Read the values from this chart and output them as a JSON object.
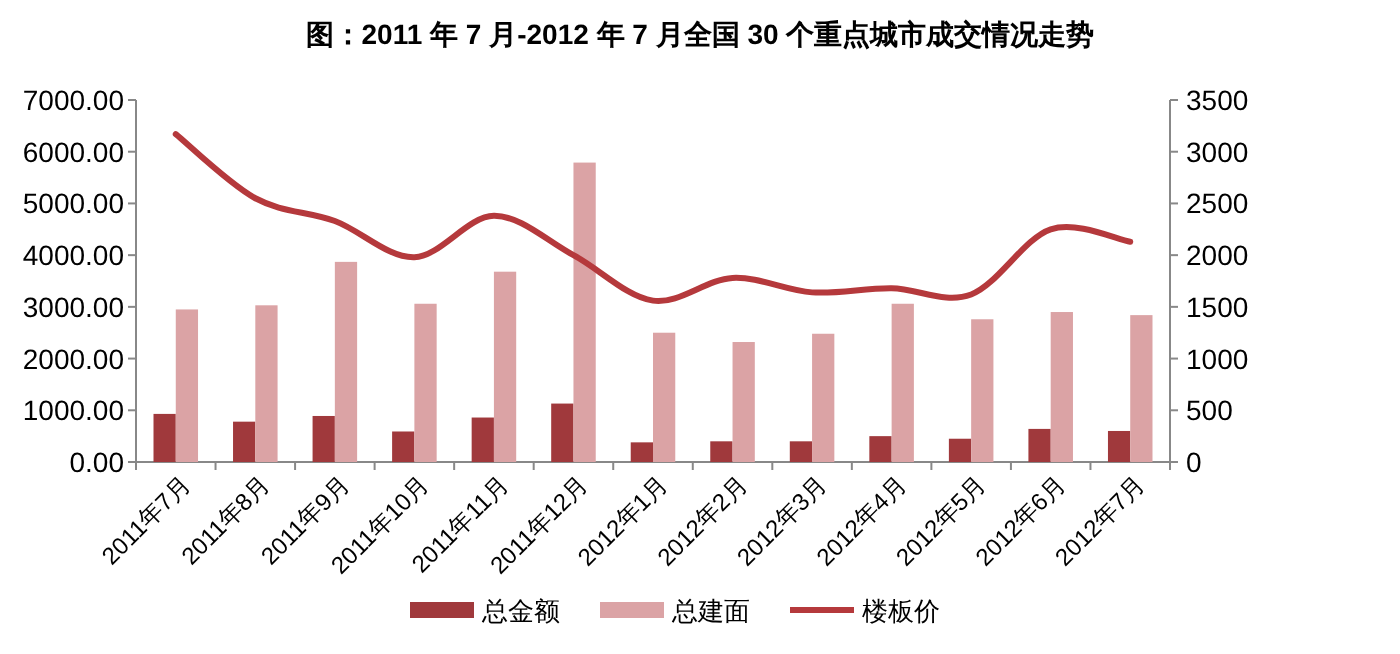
{
  "chart_data": {
    "type": "bar",
    "title": "图：2011 年 7 月-2012 年 7 月全国 30 个重点城市成交情况走势",
    "categories": [
      "2011年7月",
      "2011年8月",
      "2011年9月",
      "2011年10月",
      "2011年11月",
      "2011年12月",
      "2012年1月",
      "2012年2月",
      "2012年3月",
      "2012年4月",
      "2012年5月",
      "2012年6月",
      "2012年7月"
    ],
    "series": [
      {
        "name": "总金额",
        "color": "#a0393c",
        "values": [
          930,
          780,
          890,
          590,
          860,
          1130,
          380,
          400,
          400,
          500,
          450,
          640,
          600
        ]
      },
      {
        "name": "总建面",
        "color": "#dba3a5",
        "values": [
          2950,
          3030,
          3870,
          3060,
          3680,
          5790,
          2500,
          2320,
          2480,
          3060,
          2760,
          2900,
          2840
        ]
      },
      {
        "name": "楼板价",
        "type": "line",
        "axis": "y2",
        "color": "#b5393c",
        "values": [
          3170,
          2550,
          2330,
          1980,
          2380,
          2000,
          1560,
          1780,
          1640,
          1680,
          1620,
          2250,
          2130
        ]
      }
    ],
    "ylim": [
      0,
      7000
    ],
    "yticks": [
      {
        "value": 0,
        "label": "0.00"
      },
      {
        "value": 1000,
        "label": "1000.00"
      },
      {
        "value": 2000,
        "label": "2000.00"
      },
      {
        "value": 3000,
        "label": "3000.00"
      },
      {
        "value": 4000,
        "label": "4000.00"
      },
      {
        "value": 5000,
        "label": "5000.00"
      },
      {
        "value": 6000,
        "label": "6000.00"
      },
      {
        "value": 7000,
        "label": "7000.00"
      }
    ],
    "y2lim": [
      0,
      3500
    ],
    "y2ticks": [
      0,
      500,
      1000,
      1500,
      2000,
      2500,
      3000,
      3500
    ],
    "legend": "bottom"
  }
}
